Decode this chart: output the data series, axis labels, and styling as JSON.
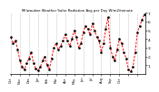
{
  "title": "Milwaukee Weather Solar Radiation Avg per Day W/m2/minute",
  "x_labels": [
    "Oct",
    "",
    "Nov",
    "",
    "Dec",
    "",
    "Jan",
    "",
    "Feb",
    "",
    "Mar",
    "",
    "Apr",
    "",
    "May",
    "",
    "Jun",
    "",
    "Jul",
    "",
    "Aug",
    "",
    "Sep",
    "",
    "Oct",
    "",
    ""
  ],
  "y_values": [
    4.2,
    3.5,
    3.8,
    2.8,
    1.5,
    0.8,
    0.5,
    1.2,
    1.8,
    2.5,
    1.2,
    0.6,
    0.4,
    0.8,
    1.5,
    2.0,
    1.0,
    0.5,
    1.8,
    3.0,
    3.5,
    2.8,
    3.2,
    3.8,
    4.5,
    3.8,
    3.2,
    4.0,
    5.0,
    4.2,
    3.0,
    3.5,
    4.8,
    5.5,
    5.2,
    4.5,
    5.8,
    5.0,
    4.2,
    3.8,
    2.5,
    3.5,
    5.2,
    6.5,
    3.0,
    2.0,
    1.5,
    2.8,
    4.0,
    3.5,
    2.5,
    1.8,
    0.5,
    0.3,
    0.8,
    2.5,
    4.8,
    5.5,
    6.2,
    6.8
  ],
  "x_tick_positions": [
    0,
    4,
    8,
    12,
    16,
    20,
    24,
    28,
    32,
    36,
    40,
    44,
    48,
    52,
    56
  ],
  "x_tick_labels": [
    "Oct",
    "Nov",
    "Dec",
    "Jan",
    "Feb",
    "Mar",
    "Apr",
    "May",
    "Jun",
    "Jul",
    "Aug",
    "Sep",
    "Oct",
    "",
    ""
  ],
  "line_color": "#ff0000",
  "dot_color": "#000000",
  "background_color": "#ffffff",
  "grid_color": "#888888",
  "ylim": [
    0,
    7
  ],
  "yticks": [
    1,
    2,
    3,
    4,
    5,
    6,
    7
  ],
  "ytick_labels": [
    "1",
    "2",
    "3",
    "4",
    "5",
    "6",
    "7"
  ]
}
